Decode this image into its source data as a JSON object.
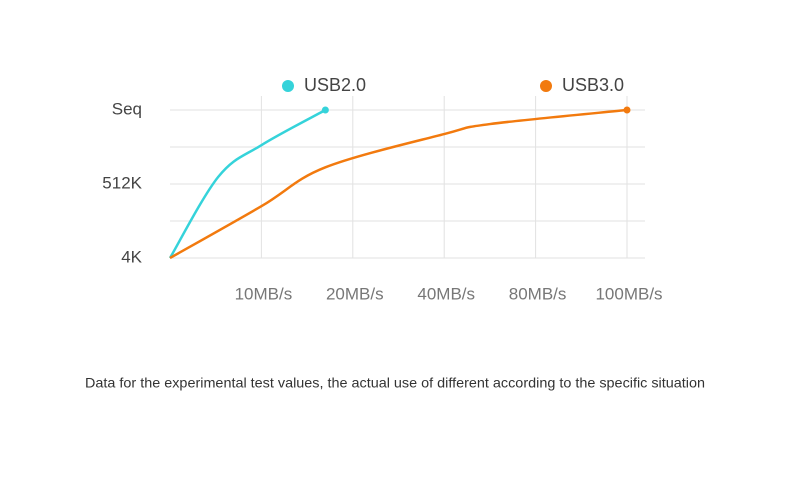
{
  "chart_data": {
    "type": "line",
    "x_categories": [
      null,
      "10MB/s",
      "20MB/s",
      "40MB/s",
      "80MB/s",
      "100MB/s"
    ],
    "y_categories": [
      "4K",
      null,
      "512K",
      null,
      "Seq"
    ],
    "grid": true,
    "series": [
      {
        "name": "USB2.0",
        "color": "#35d3da",
        "x": [
          0,
          0.53,
          1,
          1.7
        ],
        "values": [
          0,
          2.2,
          3.05,
          4
        ]
      },
      {
        "name": "USB3.0",
        "color": "#f27a0e",
        "x": [
          0,
          1,
          1.7,
          3,
          3.5,
          5
        ],
        "values": [
          0,
          1.4,
          2.45,
          3.35,
          3.62,
          4
        ]
      }
    ],
    "note": "Data for the experimental test values, the actual use of different according to the specific situation"
  }
}
